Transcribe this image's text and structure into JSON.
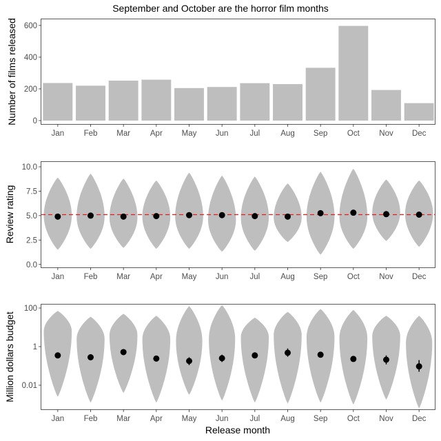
{
  "title": "September and October are the horror film months",
  "xlabel": "Release month",
  "colors": {
    "fill": "#bebebe",
    "point": "#000000",
    "refline": "#e41a1c",
    "axis": "#333333",
    "tick_text": "#4d4d4d"
  },
  "chart_data": [
    {
      "type": "bar",
      "title": "September and October are the horror film months",
      "ylabel": "Number of films released",
      "categories": [
        "Jan",
        "Feb",
        "Mar",
        "Apr",
        "May",
        "Jun",
        "Jul",
        "Aug",
        "Sep",
        "Oct",
        "Nov",
        "Dec"
      ],
      "values": [
        237,
        220,
        252,
        258,
        205,
        212,
        236,
        230,
        333,
        597,
        193,
        110
      ],
      "ylim": [
        0,
        630
      ],
      "yticks": [
        0,
        200,
        400,
        600
      ],
      "ytick_labels": [
        "0",
        "200",
        "400",
        "600"
      ]
    },
    {
      "type": "violin",
      "ylabel": "Review rating",
      "categories": [
        "Jan",
        "Feb",
        "Mar",
        "Apr",
        "May",
        "Jun",
        "Jul",
        "Aug",
        "Sep",
        "Oct",
        "Nov",
        "Dec"
      ],
      "ylim": [
        -0.3,
        10.5
      ],
      "yticks": [
        0,
        2.5,
        5,
        7.5,
        10
      ],
      "ytick_labels": [
        "0.0",
        "2.5",
        "5.0",
        "7.5",
        "10.0"
      ],
      "reference_line": 5.1,
      "violins": [
        {
          "min": 1.5,
          "max": 8.9,
          "mode": 5.0,
          "width": 0.85
        },
        {
          "min": 1.6,
          "max": 9.3,
          "mode": 4.9,
          "width": 0.85
        },
        {
          "min": 1.7,
          "max": 8.8,
          "mode": 4.8,
          "width": 0.85
        },
        {
          "min": 1.6,
          "max": 8.6,
          "mode": 4.9,
          "width": 0.85
        },
        {
          "min": 1.6,
          "max": 9.4,
          "mode": 4.9,
          "width": 0.85
        },
        {
          "min": 1.3,
          "max": 9.1,
          "mode": 4.6,
          "width": 0.85
        },
        {
          "min": 1.4,
          "max": 9.0,
          "mode": 4.8,
          "width": 0.85
        },
        {
          "min": 2.3,
          "max": 8.3,
          "mode": 4.8,
          "width": 0.85
        },
        {
          "min": 1.0,
          "max": 9.5,
          "mode": 4.9,
          "width": 0.85
        },
        {
          "min": 1.6,
          "max": 9.8,
          "mode": 4.9,
          "width": 0.85
        },
        {
          "min": 2.4,
          "max": 8.7,
          "mode": 5.3,
          "width": 0.85
        },
        {
          "min": 1.8,
          "max": 8.6,
          "mode": 5.2,
          "width": 0.85
        }
      ],
      "means": [
        4.9,
        5.0,
        4.9,
        4.95,
        5.05,
        5.05,
        4.95,
        4.9,
        5.25,
        5.3,
        5.15,
        5.1
      ],
      "err": [
        0.12,
        0.12,
        0.12,
        0.12,
        0.12,
        0.12,
        0.12,
        0.12,
        0.12,
        0.12,
        0.12,
        0.12
      ]
    },
    {
      "type": "violin",
      "ylabel": "Million dollars budget",
      "yscale": "log",
      "categories": [
        "Jan",
        "Feb",
        "Mar",
        "Apr",
        "May",
        "Jun",
        "Jul",
        "Aug",
        "Sep",
        "Oct",
        "Nov",
        "Dec"
      ],
      "ylim_log10": [
        -3.25,
        2.18
      ],
      "yticks": [
        0.01,
        1,
        100
      ],
      "ytick_labels": [
        "0.01",
        "1",
        "100"
      ],
      "violins": [
        {
          "min_log": -2.6,
          "max_log": 1.85,
          "mode_log": 0.8,
          "width": 0.85
        },
        {
          "min_log": -2.9,
          "max_log": 1.55,
          "mode_log": 0.4,
          "width": 0.85
        },
        {
          "min_log": -2.4,
          "max_log": 1.7,
          "mode_log": 0.6,
          "width": 0.85
        },
        {
          "min_log": -2.9,
          "max_log": 1.6,
          "mode_log": 0.4,
          "width": 0.85
        },
        {
          "min_log": -2.5,
          "max_log": 2.1,
          "mode_log": 0.3,
          "width": 0.8
        },
        {
          "min_log": -2.8,
          "max_log": 2.15,
          "mode_log": 0.4,
          "width": 0.8
        },
        {
          "min_log": -2.9,
          "max_log": 1.5,
          "mode_log": 0.5,
          "width": 0.85
        },
        {
          "min_log": -2.95,
          "max_log": 1.8,
          "mode_log": 0.6,
          "width": 0.85
        },
        {
          "min_log": -2.9,
          "max_log": 1.95,
          "mode_log": 0.5,
          "width": 0.85
        },
        {
          "min_log": -3.0,
          "max_log": 1.9,
          "mode_log": 0.45,
          "width": 0.85
        },
        {
          "min_log": -2.75,
          "max_log": 1.6,
          "mode_log": 0.55,
          "width": 0.85
        },
        {
          "min_log": -3.2,
          "max_log": 1.6,
          "mode_log": 0.2,
          "width": 0.8
        }
      ],
      "means": [
        0.35,
        0.28,
        0.52,
        0.24,
        0.18,
        0.25,
        0.35,
        0.48,
        0.38,
        0.23,
        0.21,
        0.095
      ],
      "err_lo": [
        0.25,
        0.2,
        0.38,
        0.17,
        0.11,
        0.16,
        0.25,
        0.3,
        0.3,
        0.19,
        0.12,
        0.05
      ],
      "err_hi": [
        0.5,
        0.4,
        0.72,
        0.34,
        0.28,
        0.38,
        0.5,
        0.8,
        0.48,
        0.28,
        0.35,
        0.2
      ]
    }
  ]
}
